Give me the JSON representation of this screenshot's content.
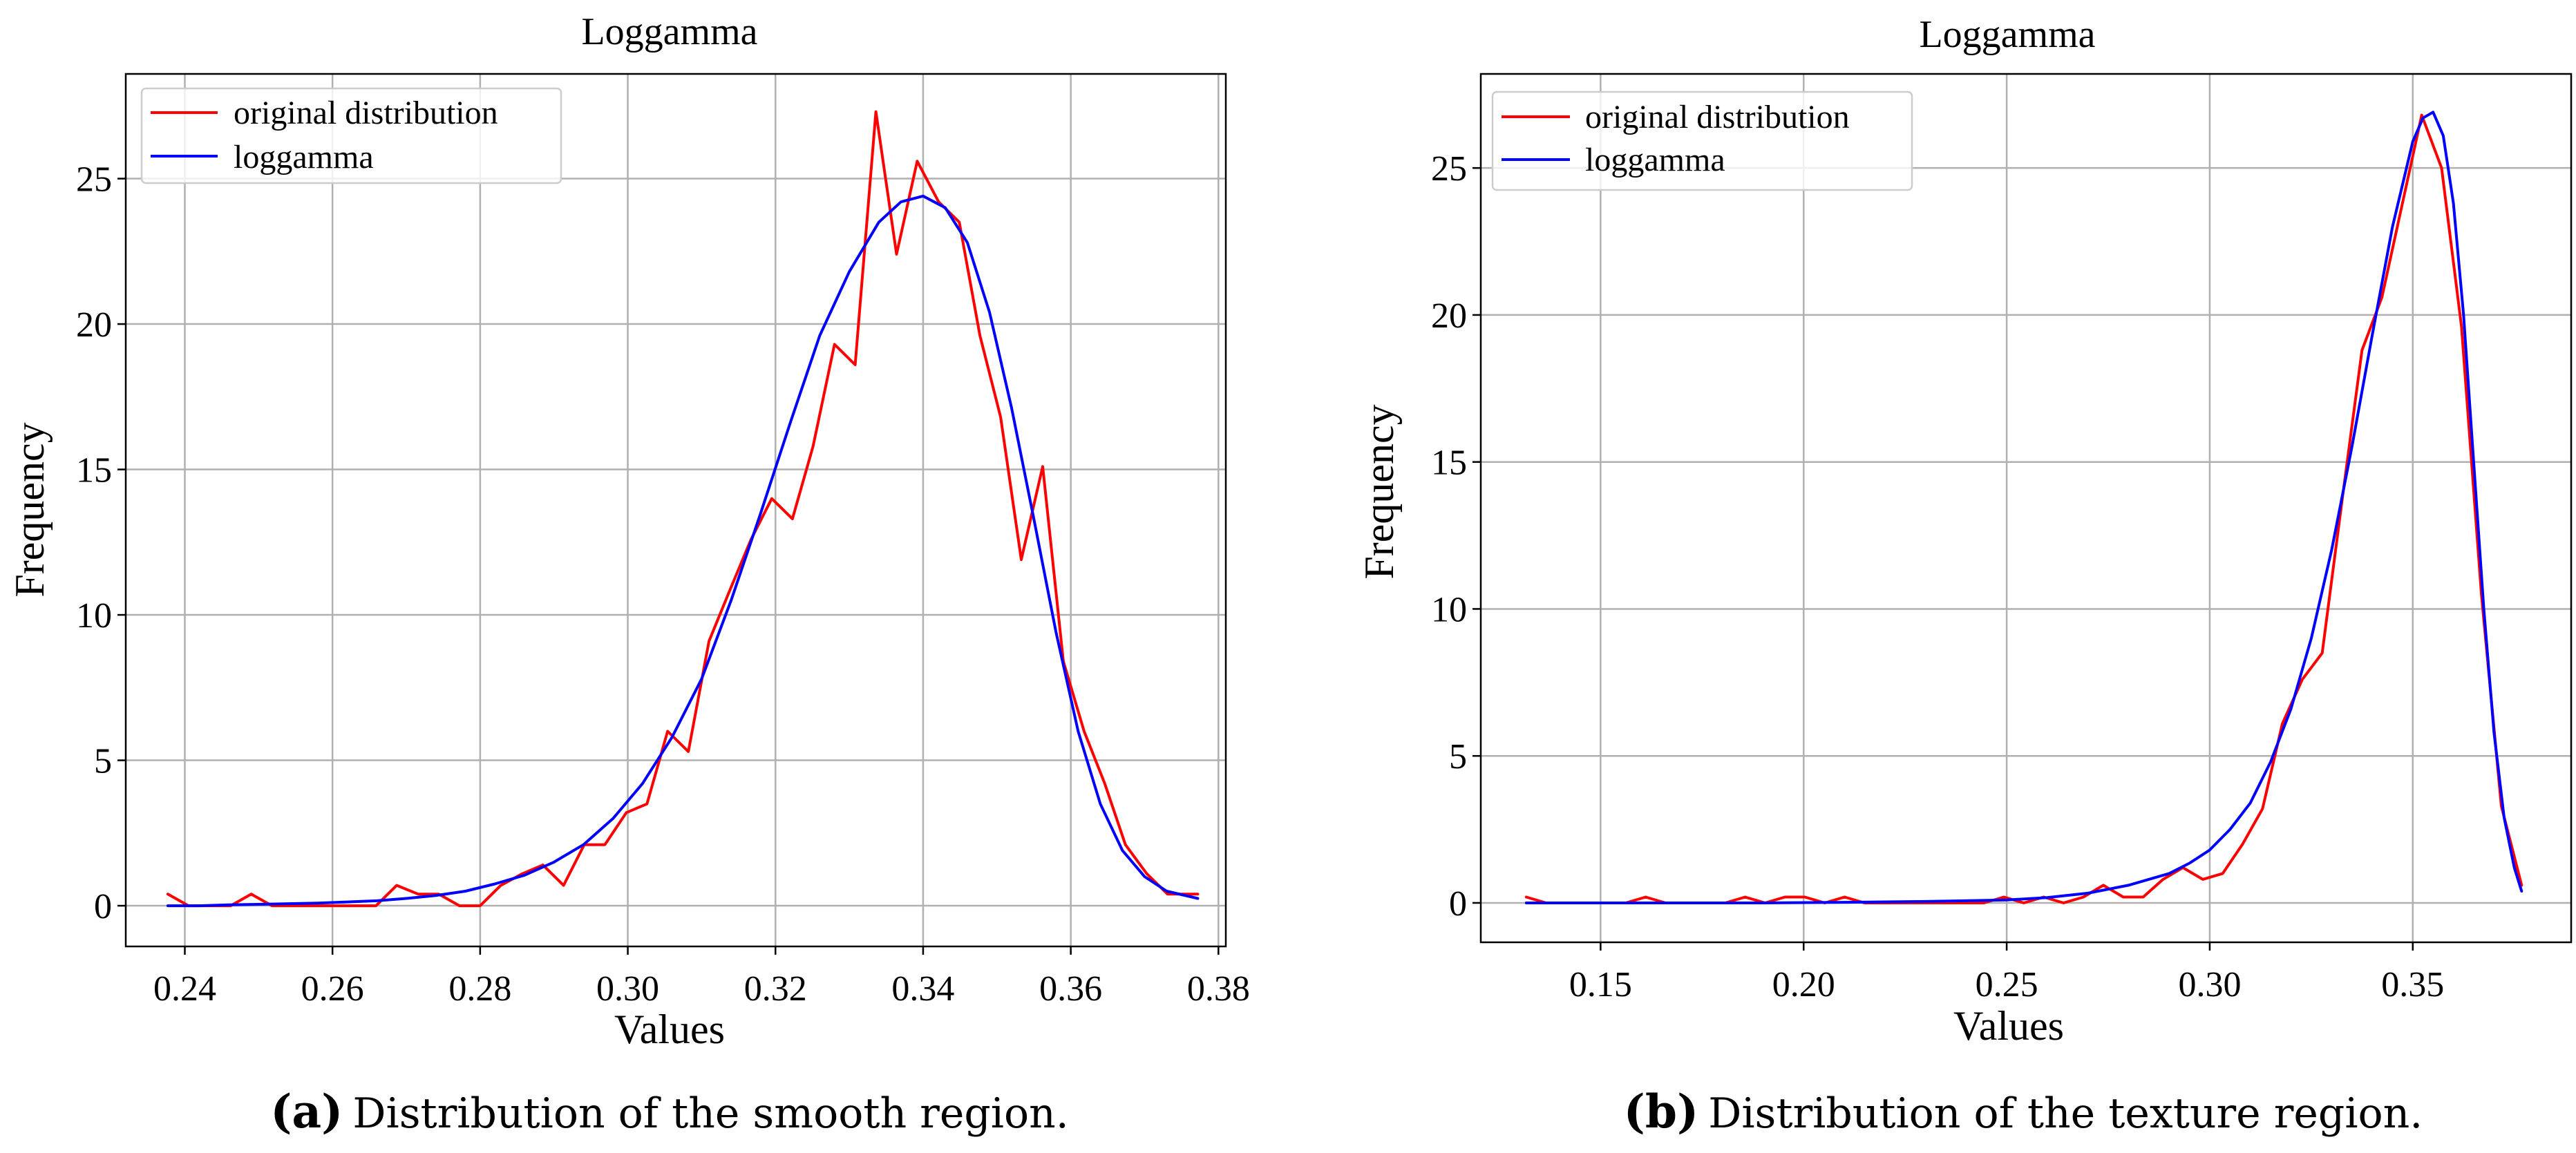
{
  "chart_data": [
    {
      "type": "line",
      "title": "Loggamma",
      "xlabel": "Values",
      "ylabel": "Frequency",
      "xlim": [
        0.232,
        0.381
      ],
      "ylim": [
        -1.4,
        28.6
      ],
      "xticks": [
        0.24,
        0.26,
        0.28,
        0.3,
        0.32,
        0.34,
        0.36,
        0.38
      ],
      "xtick_labels": [
        "0.24",
        "0.26",
        "0.28",
        "0.30",
        "0.32",
        "0.34",
        "0.36",
        "0.38"
      ],
      "yticks": [
        0,
        5,
        10,
        15,
        20,
        25
      ],
      "ytick_labels": [
        "0",
        "5",
        "10",
        "15",
        "20",
        "25"
      ],
      "grid": true,
      "legend_position": "top-left",
      "caption_label": "(a)",
      "caption_text": "Distribution of the smooth region.",
      "series": [
        {
          "name": "original distribution",
          "color": "#ff0000",
          "x": [
            0.2377,
            0.2405,
            0.2434,
            0.2462,
            0.249,
            0.2518,
            0.2546,
            0.2575,
            0.2603,
            0.2631,
            0.2659,
            0.2687,
            0.2716,
            0.2744,
            0.2772,
            0.28,
            0.2828,
            0.2857,
            0.2885,
            0.2913,
            0.2941,
            0.2969,
            0.2998,
            0.3026,
            0.3054,
            0.3082,
            0.311,
            0.3139,
            0.3167,
            0.3195,
            0.3223,
            0.3251,
            0.328,
            0.3308,
            0.3336,
            0.3364,
            0.3392,
            0.3421,
            0.3449,
            0.3477,
            0.3505,
            0.3533,
            0.3562,
            0.359,
            0.3618,
            0.3646,
            0.3674,
            0.3703,
            0.3731,
            0.3759,
            0.3772
          ],
          "y": [
            0.4,
            0.0,
            0.0,
            0.0,
            0.4,
            0.0,
            0.0,
            0.0,
            0.0,
            0.0,
            0.0,
            0.7,
            0.4,
            0.4,
            0.0,
            0.0,
            0.7,
            1.1,
            1.4,
            0.7,
            2.1,
            2.1,
            3.2,
            3.5,
            6.0,
            5.3,
            9.1,
            10.9,
            12.6,
            14.0,
            13.3,
            15.8,
            19.3,
            18.6,
            27.3,
            22.4,
            25.6,
            24.2,
            23.5,
            19.6,
            16.8,
            11.9,
            15.1,
            8.4,
            6.0,
            4.2,
            2.1,
            1.1,
            0.4,
            0.4,
            0.4
          ]
        },
        {
          "name": "loggamma",
          "color": "#0000ff",
          "x": [
            0.2377,
            0.242,
            0.246,
            0.25,
            0.254,
            0.258,
            0.262,
            0.266,
            0.27,
            0.274,
            0.278,
            0.282,
            0.286,
            0.29,
            0.294,
            0.298,
            0.302,
            0.306,
            0.31,
            0.314,
            0.318,
            0.322,
            0.326,
            0.33,
            0.334,
            0.337,
            0.34,
            0.343,
            0.346,
            0.349,
            0.352,
            0.355,
            0.358,
            0.361,
            0.364,
            0.367,
            0.37,
            0.373,
            0.3772
          ],
          "y": [
            0.0,
            0.0,
            0.03,
            0.05,
            0.07,
            0.09,
            0.13,
            0.17,
            0.25,
            0.35,
            0.5,
            0.75,
            1.05,
            1.5,
            2.1,
            3.0,
            4.2,
            5.8,
            7.8,
            10.5,
            13.5,
            16.6,
            19.6,
            21.8,
            23.5,
            24.2,
            24.4,
            24.0,
            22.8,
            20.4,
            17.1,
            13.3,
            9.4,
            6.0,
            3.5,
            1.9,
            1.0,
            0.5,
            0.25
          ]
        }
      ]
    },
    {
      "type": "line",
      "title": "Loggamma",
      "xlabel": "Values",
      "ylabel": "Frequency",
      "xlim": [
        0.1205,
        0.389
      ],
      "ylim": [
        -1.34,
        28.2
      ],
      "xticks": [
        0.15,
        0.2,
        0.25,
        0.3,
        0.35
      ],
      "xtick_labels": [
        "0.15",
        "0.20",
        "0.25",
        "0.30",
        "0.35"
      ],
      "yticks": [
        0,
        5,
        10,
        15,
        20,
        25
      ],
      "ytick_labels": [
        "0",
        "5",
        "10",
        "15",
        "20",
        "25"
      ],
      "grid": true,
      "legend_position": "top-left",
      "caption_label": "(b)",
      "caption_text": "Distribution of the texture region.",
      "series": [
        {
          "name": "original distribution",
          "color": "#ff0000",
          "x": [
            0.1317,
            0.1366,
            0.1415,
            0.1464,
            0.1513,
            0.1562,
            0.1611,
            0.166,
            0.1709,
            0.1758,
            0.1807,
            0.1856,
            0.1905,
            0.1954,
            0.2003,
            0.2052,
            0.2101,
            0.215,
            0.2199,
            0.2248,
            0.2297,
            0.2346,
            0.2395,
            0.2444,
            0.2493,
            0.2542,
            0.2591,
            0.264,
            0.2689,
            0.2738,
            0.2787,
            0.2836,
            0.2885,
            0.2934,
            0.2983,
            0.3032,
            0.3081,
            0.313,
            0.3179,
            0.3228,
            0.3277,
            0.3326,
            0.3375,
            0.3424,
            0.3473,
            0.3522,
            0.3571,
            0.362,
            0.3669,
            0.3718,
            0.3768
          ],
          "y": [
            0.2,
            0.0,
            0.0,
            0.0,
            0.0,
            0.0,
            0.2,
            0.0,
            0.0,
            0.0,
            0.0,
            0.2,
            0.0,
            0.2,
            0.2,
            0.0,
            0.2,
            0.0,
            0.0,
            0.0,
            0.0,
            0.0,
            0.0,
            0.0,
            0.2,
            0.0,
            0.2,
            0.0,
            0.2,
            0.6,
            0.2,
            0.2,
            0.8,
            1.2,
            0.8,
            1.0,
            2.0,
            3.2,
            6.1,
            7.6,
            8.5,
            13.7,
            18.8,
            20.6,
            23.7,
            26.8,
            25.0,
            19.6,
            10.5,
            3.3,
            0.6
          ]
        },
        {
          "name": "loggamma",
          "color": "#0000ff",
          "x": [
            0.1317,
            0.15,
            0.17,
            0.19,
            0.21,
            0.23,
            0.25,
            0.26,
            0.27,
            0.28,
            0.29,
            0.295,
            0.3,
            0.305,
            0.31,
            0.315,
            0.32,
            0.325,
            0.33,
            0.335,
            0.34,
            0.345,
            0.35,
            0.3525,
            0.355,
            0.3575,
            0.36,
            0.3625,
            0.365,
            0.3675,
            0.37,
            0.3725,
            0.375,
            0.3768
          ],
          "y": [
            0.0,
            0.0,
            0.0,
            0.0,
            0.02,
            0.05,
            0.1,
            0.18,
            0.33,
            0.6,
            1.0,
            1.35,
            1.8,
            2.5,
            3.4,
            4.8,
            6.6,
            9.0,
            12.0,
            15.5,
            19.3,
            23.0,
            25.9,
            26.7,
            26.9,
            26.1,
            23.8,
            20.0,
            15.0,
            10.0,
            5.8,
            2.9,
            1.2,
            0.4
          ]
        }
      ]
    }
  ]
}
